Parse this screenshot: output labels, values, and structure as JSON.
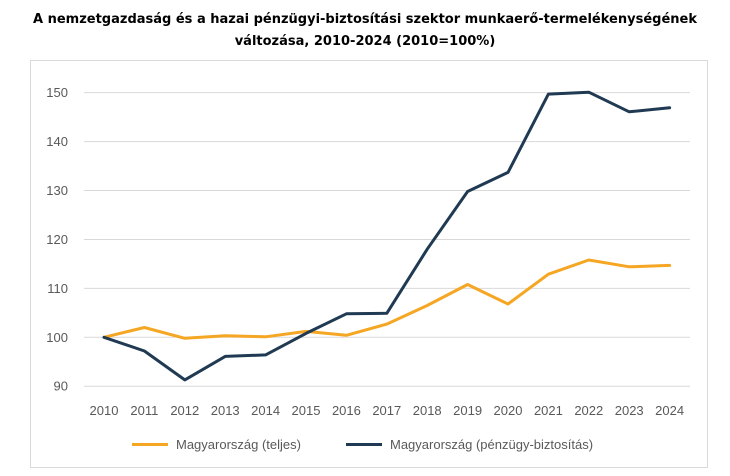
{
  "chart_data": {
    "type": "line",
    "title_line1": "A nemzetgazdaság és a hazai pénzügyi-biztosítási szektor munkaerő-termelékenységének",
    "title_line2": "változása, 2010-2024 (2010=100%)",
    "categories": [
      "2010",
      "2011",
      "2012",
      "2013",
      "2014",
      "2015",
      "2016",
      "2017",
      "2018",
      "2019",
      "2020",
      "2021",
      "2022",
      "2023",
      "2024"
    ],
    "yticks": [
      "90",
      "100",
      "110",
      "120",
      "130",
      "140",
      "150"
    ],
    "ylim": [
      88,
      153
    ],
    "grid": true,
    "legend_position": "bottom",
    "series": [
      {
        "name": "Magyarország (teljes)",
        "color": "#f5a623",
        "values": [
          100,
          102,
          99.8,
          100.3,
          100.1,
          101.2,
          100.4,
          102.7,
          106.5,
          110.8,
          106.8,
          112.9,
          115.8,
          114.4,
          114.7
        ]
      },
      {
        "name": "Magyarország (pénzügy-biztosítás)",
        "color": "#1f3a52",
        "values": [
          100,
          97.2,
          91.3,
          96.1,
          96.4,
          100.8,
          104.8,
          104.9,
          118,
          129.8,
          133.7,
          149.7,
          150.1,
          146.1,
          146.9
        ]
      }
    ]
  }
}
